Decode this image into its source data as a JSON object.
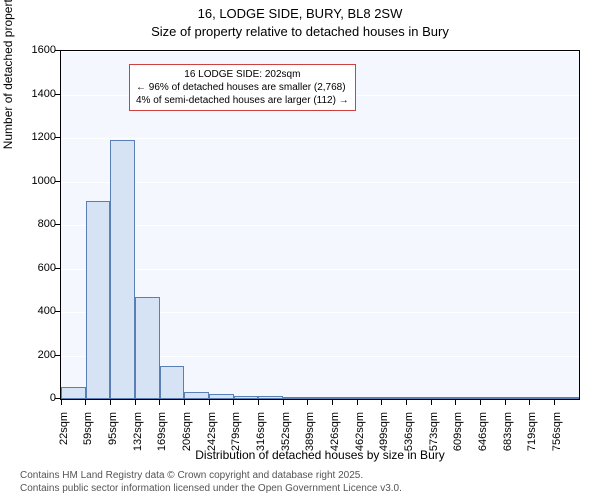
{
  "title_line1": "16, LODGE SIDE, BURY, BL8 2SW",
  "title_line2": "Size of property relative to detached houses in Bury",
  "y_axis_label": "Number of detached properties",
  "x_axis_label": "Distribution of detached houses by size in Bury",
  "annotation": {
    "line1": "16 LODGE SIDE: 202sqm",
    "line2": "← 96% of detached houses are smaller (2,768)",
    "line3": "4% of semi-detached houses are larger (112) →",
    "border_color": "#d04040",
    "bg_color": "#ffffff"
  },
  "chart": {
    "type": "histogram",
    "plot_bg": "#f4f8fe",
    "grid_color": "#ffffff",
    "bar_fill": "#d6e3f5",
    "bar_stroke": "#5a7fb5",
    "y_ticks": [
      0,
      200,
      400,
      600,
      800,
      1000,
      1200,
      1400,
      1600
    ],
    "y_max": 1600,
    "x_ticks": [
      "22sqm",
      "59sqm",
      "95sqm",
      "132sqm",
      "169sqm",
      "206sqm",
      "242sqm",
      "279sqm",
      "316sqm",
      "352sqm",
      "389sqm",
      "426sqm",
      "462sqm",
      "499sqm",
      "536sqm",
      "573sqm",
      "609sqm",
      "646sqm",
      "683sqm",
      "719sqm",
      "756sqm"
    ],
    "bars": [
      55,
      910,
      1190,
      470,
      150,
      30,
      25,
      15,
      15,
      10,
      5,
      3,
      3,
      2,
      2,
      2,
      1,
      1,
      1,
      1,
      1
    ]
  },
  "footer": {
    "line1": "Contains HM Land Registry data © Crown copyright and database right 2025.",
    "line2": "Contains public sector information licensed under the Open Government Licence v3.0."
  }
}
